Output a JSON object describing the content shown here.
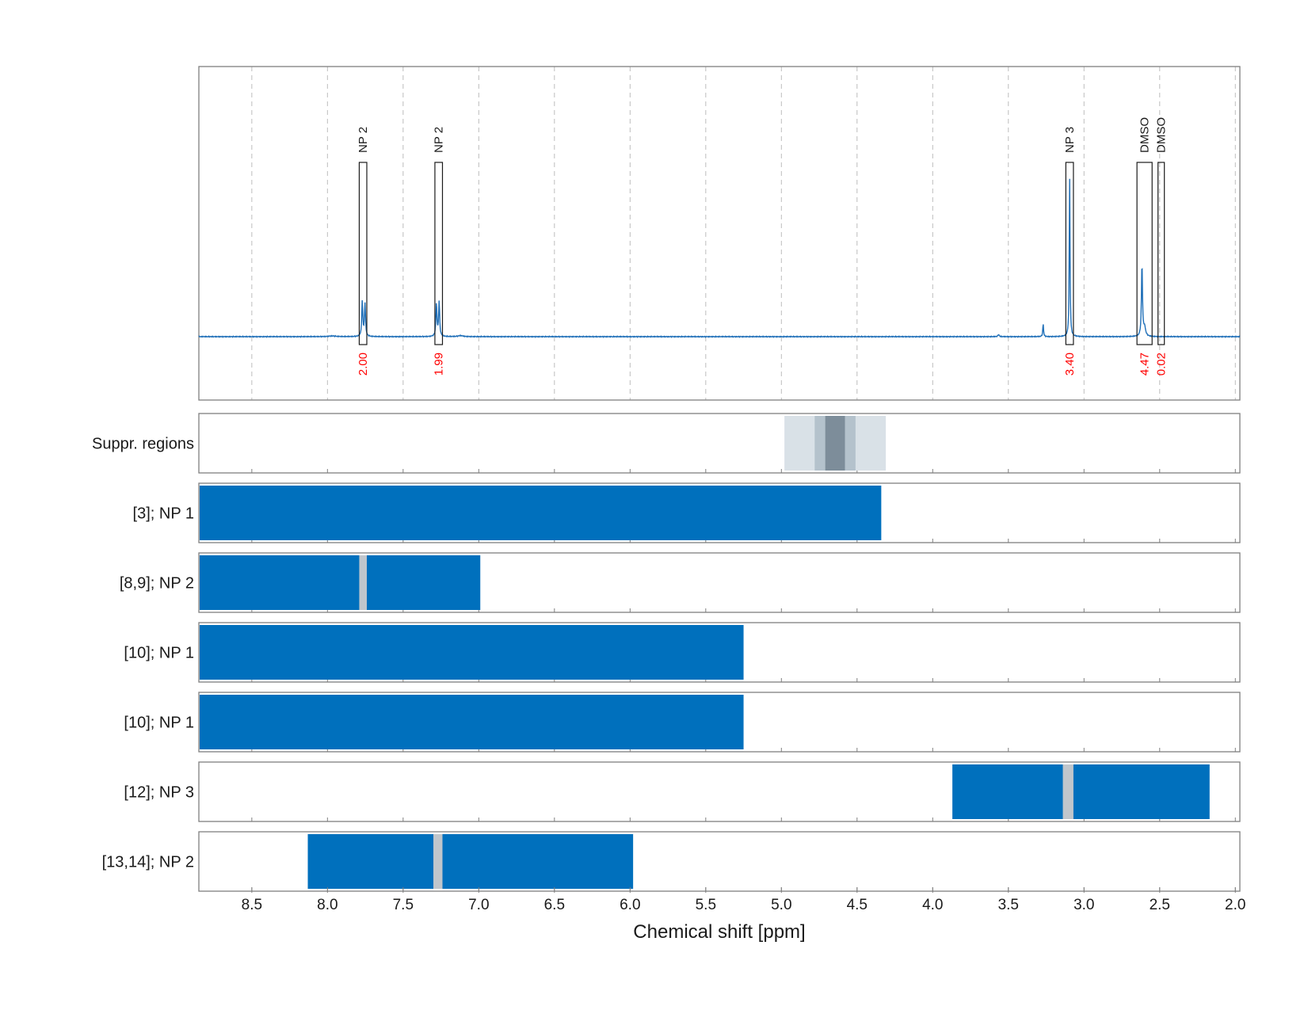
{
  "chart_data": {
    "type": "nmr-spectrum-with-assignment-tracks",
    "xlabel": "Chemical shift [ppm]",
    "x_reversed": true,
    "xlim": [
      8.85,
      1.97
    ],
    "xticks": [
      8.5,
      8.0,
      7.5,
      7.0,
      6.5,
      6.0,
      5.5,
      5.0,
      4.5,
      4.0,
      3.5,
      3.0,
      2.5,
      2.0
    ],
    "xtick_labels": [
      "8.5",
      "8.0",
      "7.5",
      "7.0",
      "6.5",
      "6.0",
      "5.5",
      "5.0",
      "4.5",
      "4.0",
      "3.5",
      "3.0",
      "2.5",
      "2.0"
    ],
    "spectrum": {
      "color": "#1f6fb8",
      "baseline": 0,
      "y_max": 1.0,
      "peaks": [
        {
          "shift": 7.77,
          "height": 0.2,
          "width": 0.004
        },
        {
          "shift": 7.752,
          "height": 0.19,
          "width": 0.004
        },
        {
          "shift": 7.28,
          "height": 0.19,
          "width": 0.004
        },
        {
          "shift": 7.262,
          "height": 0.2,
          "width": 0.004
        },
        {
          "shift": 7.12,
          "height": 0.006,
          "width": 0.02
        },
        {
          "shift": 7.97,
          "height": 0.004,
          "width": 0.03
        },
        {
          "shift": 3.565,
          "height": 0.012,
          "width": 0.005
        },
        {
          "shift": 3.27,
          "height": 0.075,
          "width": 0.003
        },
        {
          "shift": 3.095,
          "height": 0.92,
          "width": 0.003
        },
        {
          "shift": 2.617,
          "height": 0.42,
          "width": 0.004
        },
        {
          "shift": 2.6,
          "height": 0.05,
          "width": 0.008
        }
      ]
    },
    "peak_annotations": [
      {
        "label": "NP 2",
        "integral": "2.00",
        "shift_left": 7.79,
        "shift_right": 7.74,
        "height": 1.0
      },
      {
        "label": "NP 2",
        "integral": "1.99",
        "shift_left": 7.29,
        "shift_right": 7.24,
        "height": 1.0
      },
      {
        "label": "NP 3",
        "integral": "3.40",
        "shift_left": 3.12,
        "shift_right": 3.07,
        "height": 1.0
      },
      {
        "label": "DMSO",
        "integral": "4.47",
        "shift_left": 2.65,
        "shift_right": 2.55,
        "height": 1.0
      },
      {
        "label": "DMSO",
        "integral": "0.02",
        "shift_left": 2.51,
        "shift_right": 2.47,
        "height": 1.0
      }
    ],
    "integral_color": "#ff0000",
    "suppression_track": {
      "label": "Suppr. regions",
      "regions": [
        {
          "from": 4.98,
          "to": 4.31,
          "color": "#d9e1e7"
        },
        {
          "from": 4.78,
          "to": 4.51,
          "color": "#b4c2cc"
        },
        {
          "from": 4.71,
          "to": 4.58,
          "color": "#7d8d9a"
        }
      ]
    },
    "tracks": [
      {
        "label": "[3]; NP 1",
        "ranges": [
          {
            "from": 8.85,
            "to": 4.34
          }
        ],
        "gaps": []
      },
      {
        "label": "[8,9]; NP 2",
        "ranges": [
          {
            "from": 8.85,
            "to": 6.99
          }
        ],
        "gaps": [
          {
            "from": 7.79,
            "to": 7.74
          }
        ]
      },
      {
        "label": "[10]; NP 1",
        "ranges": [
          {
            "from": 8.85,
            "to": 5.25
          }
        ],
        "gaps": []
      },
      {
        "label": "[10]; NP 1",
        "ranges": [
          {
            "from": 8.85,
            "to": 5.25
          }
        ],
        "gaps": []
      },
      {
        "label": "[12]; NP 3",
        "ranges": [
          {
            "from": 3.87,
            "to": 2.17
          }
        ],
        "gaps": [
          {
            "from": 3.14,
            "to": 3.07
          }
        ]
      },
      {
        "label": "[13,14]; NP 2",
        "ranges": [
          {
            "from": 8.13,
            "to": 5.98
          }
        ],
        "gaps": [
          {
            "from": 7.3,
            "to": 7.24
          }
        ]
      }
    ],
    "track_color": "#0070bd",
    "gap_color": "#c0c6cc"
  }
}
